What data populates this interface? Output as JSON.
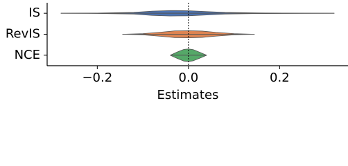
{
  "chart_data": {
    "type": "violin",
    "x_label": "Estimates",
    "categories": [
      "IS",
      "RevIS",
      "NCE"
    ],
    "xlim": [
      -0.31,
      0.35
    ],
    "xticks": [
      {
        "value": -0.2,
        "label": "−0.2"
      },
      {
        "value": 0.0,
        "label": "0.0"
      },
      {
        "value": 0.2,
        "label": "0.2"
      }
    ],
    "reference_line": 0,
    "series": [
      {
        "name": "IS",
        "color": "#4c72b0",
        "x": [
          -0.28,
          -0.2,
          -0.12,
          -0.08,
          -0.04,
          0,
          0.04,
          0.08,
          0.15,
          0.25,
          0.32
        ],
        "values": [
          0,
          0.01,
          0.04,
          0.1,
          0.13,
          0.12,
          0.08,
          0.04,
          0.015,
          0.005,
          0
        ]
      },
      {
        "name": "RevIS",
        "color": "#dd8452",
        "x": [
          -0.145,
          -0.1,
          -0.06,
          -0.03,
          0,
          0.03,
          0.06,
          0.1,
          0.145
        ],
        "values": [
          0,
          0.03,
          0.1,
          0.16,
          0.17,
          0.15,
          0.09,
          0.03,
          0
        ]
      },
      {
        "name": "NCE",
        "color": "#55a868",
        "x": [
          -0.04,
          -0.025,
          -0.01,
          0,
          0.01,
          0.025,
          0.04
        ],
        "values": [
          0,
          0.15,
          0.28,
          0.3,
          0.27,
          0.14,
          0
        ]
      }
    ]
  }
}
